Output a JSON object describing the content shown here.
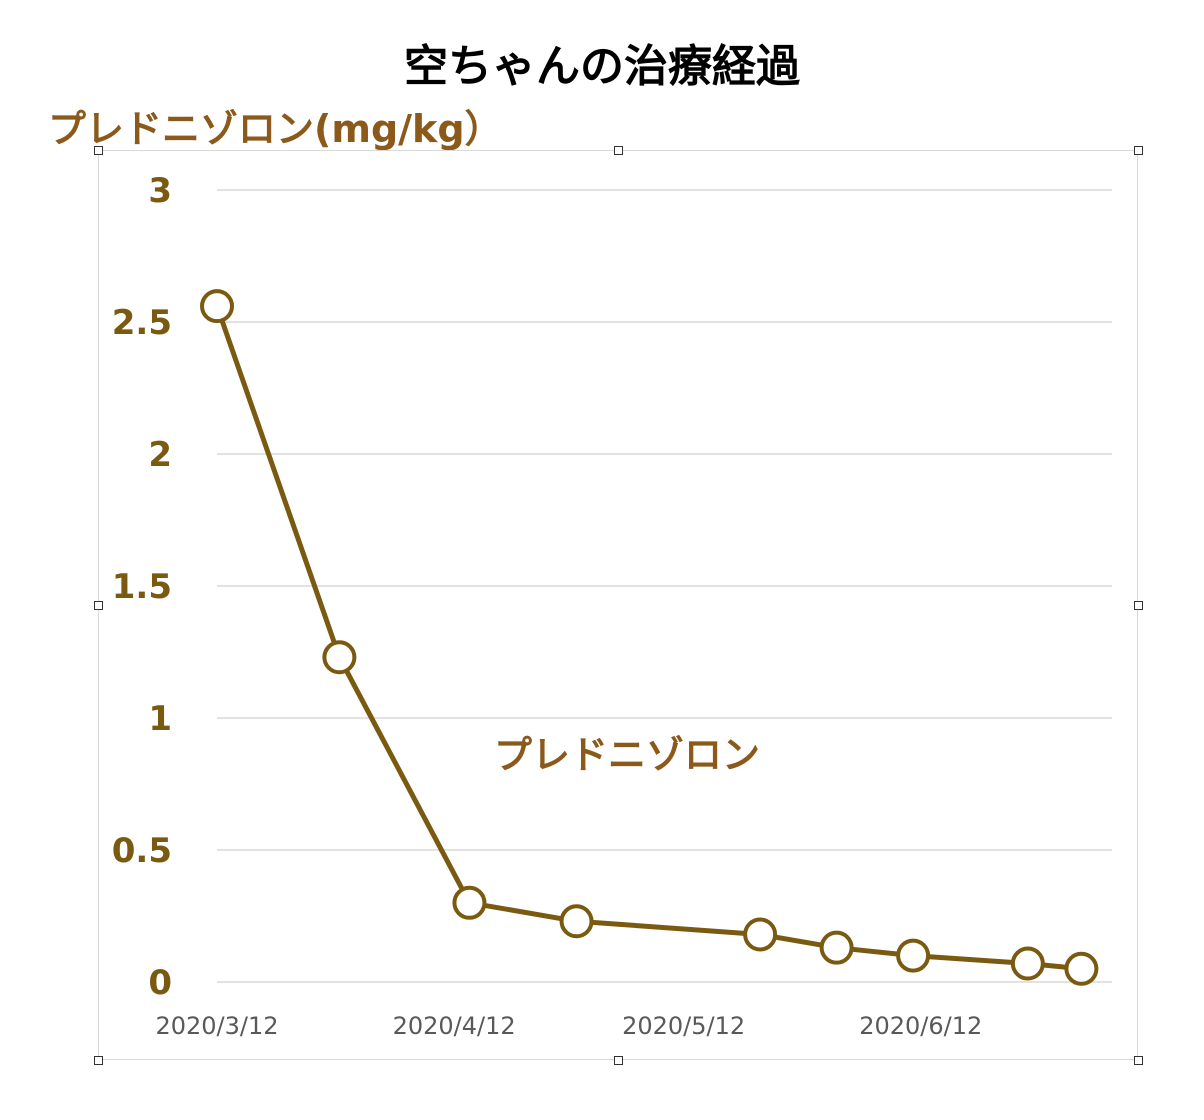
{
  "chart_data": {
    "type": "line",
    "title": "空ちゃんの治療経過",
    "ylabel": "プレドニゾロン(mg/kg）",
    "xlabel": "",
    "ylim": [
      0,
      3
    ],
    "yticks": [
      "0",
      "0.5",
      "1",
      "1.5",
      "2",
      "2.5",
      "3"
    ],
    "xlim": [
      "2020-03-12",
      "2020-07-07"
    ],
    "xtick_labels": [
      "2020/3/12",
      "2020/4/12",
      "2020/5/12",
      "2020/6/12"
    ],
    "xtick_dates": [
      "2020-03-12",
      "2020-04-12",
      "2020-05-12",
      "2020-06-12"
    ],
    "grid": true,
    "series": [
      {
        "name": "プレドニゾロン",
        "color": "#7a5a10",
        "marker": "open-circle",
        "points": [
          {
            "x": "2020-03-12",
            "y": 2.56
          },
          {
            "x": "2020-03-28",
            "y": 1.23
          },
          {
            "x": "2020-04-14",
            "y": 0.3
          },
          {
            "x": "2020-04-28",
            "y": 0.23
          },
          {
            "x": "2020-05-22",
            "y": 0.18
          },
          {
            "x": "2020-06-01",
            "y": 0.13
          },
          {
            "x": "2020-06-11",
            "y": 0.1
          },
          {
            "x": "2020-06-26",
            "y": 0.07
          },
          {
            "x": "2020-07-03",
            "y": 0.05
          }
        ]
      }
    ]
  }
}
